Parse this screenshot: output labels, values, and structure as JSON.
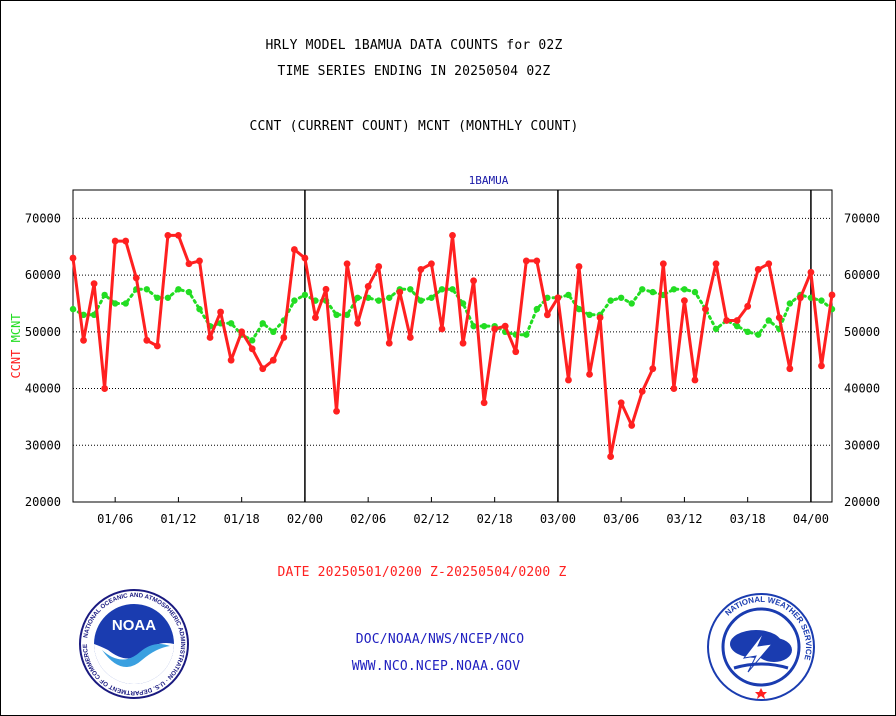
{
  "header": {
    "title_line1": "HRLY MODEL 1BAMUA DATA COUNTS for 02Z",
    "title_line2": "TIME SERIES ENDING IN 20250504 02Z",
    "subtitle": "CCNT (CURRENT COUNT) MCNT (MONTHLY COUNT)"
  },
  "footer": {
    "date_range": "DATE 20250501/0200 Z-20250504/0200 Z",
    "org_path": "DOC/NOAA/NWS/NCEP/NCO",
    "website": "WWW.NCO.NCEP.NOAA.GOV"
  },
  "logos": {
    "noaa_text": "NOAA",
    "noaa_ring": "NATIONAL OCEANIC AND ATMOSPHERIC ADMINISTRATION · U.S. DEPARTMENT OF COMMERCE",
    "nws_ring": "NATIONAL WEATHER SERVICE"
  },
  "colors": {
    "ccnt": "#ff2020",
    "mcnt": "#22dd22",
    "title_blue": "#1a1aa8",
    "date_red": "#ff2020",
    "link_blue": "#2020c0"
  },
  "chart_data": {
    "type": "line",
    "title": "1BAMUA",
    "ylabel_left": [
      "CCNT",
      "MCNT"
    ],
    "ylim": [
      20000,
      75000
    ],
    "yticks": [
      20000,
      30000,
      40000,
      50000,
      60000,
      70000
    ],
    "xlim": [
      0,
      72
    ],
    "xticks": [
      {
        "label": "01/06",
        "x": 4
      },
      {
        "label": "01/12",
        "x": 10
      },
      {
        "label": "01/18",
        "x": 16
      },
      {
        "label": "02/00",
        "x": 22
      },
      {
        "label": "02/06",
        "x": 28
      },
      {
        "label": "02/12",
        "x": 34
      },
      {
        "label": "02/18",
        "x": 40
      },
      {
        "label": "03/00",
        "x": 46
      },
      {
        "label": "03/06",
        "x": 52
      },
      {
        "label": "03/12",
        "x": 58
      },
      {
        "label": "03/18",
        "x": 64
      },
      {
        "label": "04/00",
        "x": 70
      }
    ],
    "day_boundaries": [
      22,
      46,
      70
    ],
    "grid": "horizontal dotted",
    "series": [
      {
        "name": "CCNT",
        "values": [
          63000,
          48500,
          58500,
          40000,
          66000,
          66000,
          59500,
          48500,
          47500,
          67000,
          67000,
          62000,
          62500,
          49000,
          53500,
          45000,
          50000,
          47000,
          43500,
          45000,
          49000,
          64500,
          63000,
          52500,
          57500,
          36000,
          62000,
          51500,
          58000,
          61500,
          48000,
          57000,
          49000,
          61000,
          62000,
          50500,
          67000,
          48000,
          59000,
          37500,
          50500,
          51000,
          46500,
          62500,
          62500,
          53000,
          56000,
          41500,
          61500,
          42500,
          52500,
          28000,
          37500,
          33500,
          39500,
          43500,
          62000,
          40000,
          55500,
          41500,
          54000,
          62000,
          52000,
          52000,
          54500,
          61000,
          62000,
          52500,
          43500,
          56000,
          60500,
          44000,
          56500
        ]
      },
      {
        "name": "MCNT",
        "values": [
          54000,
          53000,
          53000,
          56500,
          55000,
          55000,
          57500,
          57500,
          56000,
          56000,
          57500,
          57000,
          54000,
          51000,
          51500,
          51500,
          49500,
          48500,
          51500,
          50000,
          52000,
          55500,
          56500,
          55500,
          55500,
          53000,
          53000,
          56000,
          56000,
          55500,
          56000,
          57500,
          57500,
          55500,
          56000,
          57500,
          57500,
          55000,
          51000,
          51000,
          51000,
          50000,
          49500,
          49500,
          54000,
          56000,
          56000,
          56500,
          54000,
          53000,
          53000,
          55500,
          56000,
          55000,
          57500,
          57000,
          56500,
          57500,
          57500,
          57000,
          54000,
          50500,
          52000,
          51000,
          50000,
          49500,
          52000,
          50500,
          55000,
          56500,
          56000,
          55500,
          54000
        ]
      }
    ]
  }
}
